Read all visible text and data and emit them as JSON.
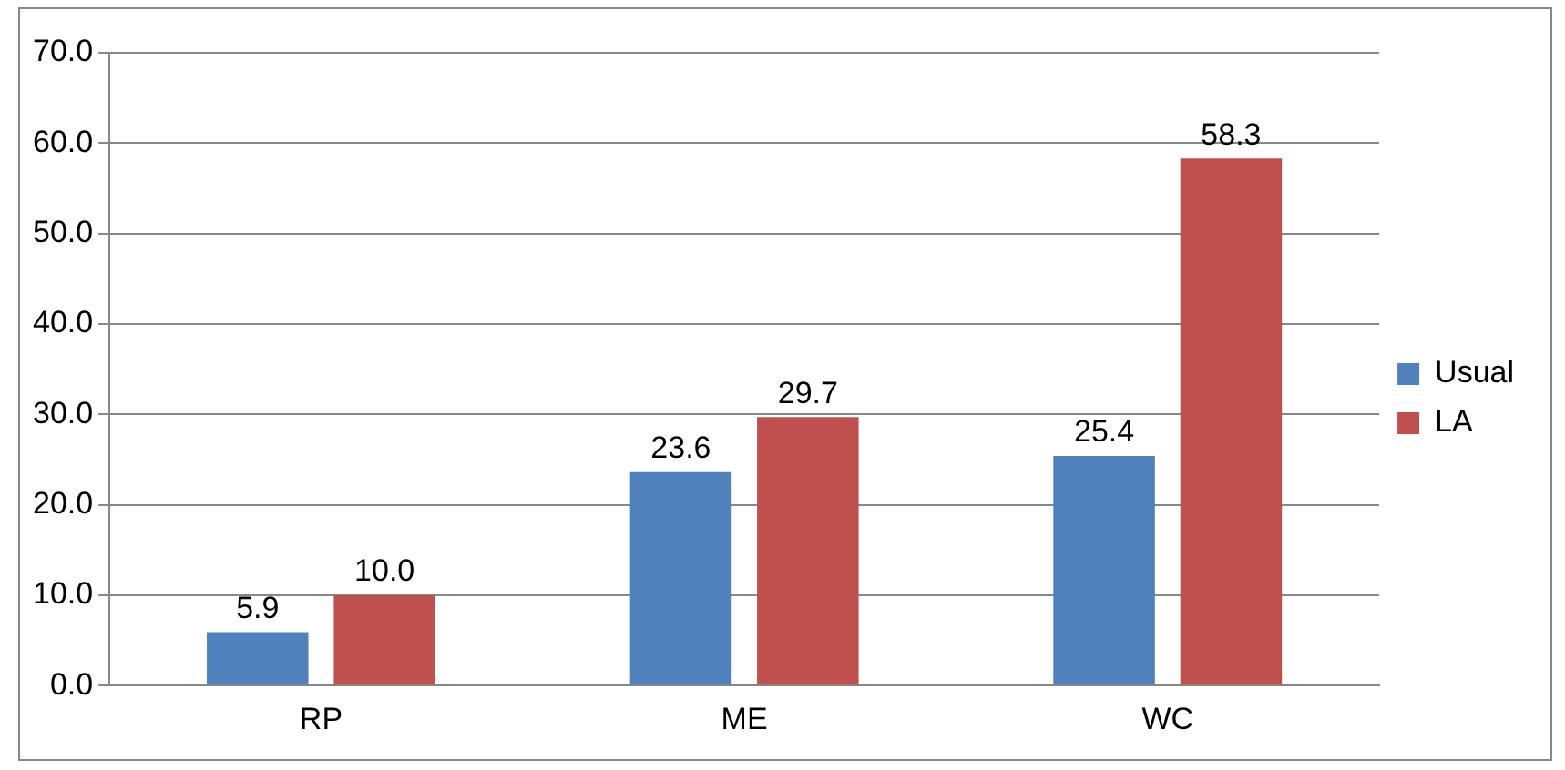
{
  "chart_data": {
    "type": "bar",
    "categories": [
      "RP",
      "ME",
      "WC"
    ],
    "series": [
      {
        "name": "Usual",
        "color": "#4f81bd",
        "values": [
          5.9,
          23.6,
          25.4
        ],
        "value_labels": [
          "5.9",
          "23.6",
          "25.4"
        ]
      },
      {
        "name": "LA",
        "color": "#c0504d",
        "values": [
          10.0,
          29.7,
          58.3
        ],
        "value_labels": [
          "10.0",
          "29.7",
          "58.3"
        ]
      }
    ],
    "ylim": [
      0,
      70
    ],
    "yticks": [
      {
        "value": 0,
        "label": "0.0"
      },
      {
        "value": 10,
        "label": "10.0"
      },
      {
        "value": 20,
        "label": "20.0"
      },
      {
        "value": 30,
        "label": "30.0"
      },
      {
        "value": 40,
        "label": "40.0"
      },
      {
        "value": 50,
        "label": "50.0"
      },
      {
        "value": 60,
        "label": "60.0"
      },
      {
        "value": 70,
        "label": "70.0"
      }
    ],
    "grid": "y",
    "legend": "right"
  }
}
